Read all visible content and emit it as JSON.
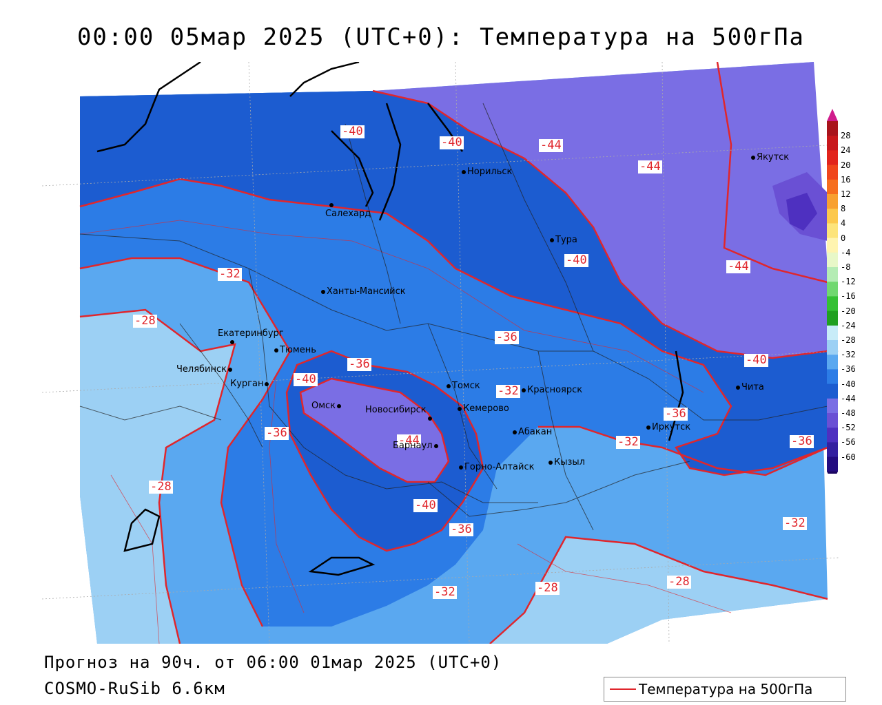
{
  "title": "00:00 05мар 2025 (UTC+0): Температура на 500гПа",
  "forecast_info": "Прогноз на 90ч. от 06:00 01мар 2025 (UTC+0)",
  "model_info": "COSMO-RuSib 6.6км",
  "legend": {
    "label": "Температура на 500гПа",
    "line_color": "#e0262c"
  },
  "scale": {
    "ticks": [
      "28",
      "24",
      "20",
      "16",
      "12",
      "8",
      "4",
      "0",
      "-4",
      "-8",
      "-12",
      "-16",
      "-20",
      "-24",
      "-28",
      "-32",
      "-36",
      "-40",
      "-44",
      "-48",
      "-52",
      "-56",
      "-60"
    ],
    "colors": [
      "#a8141c",
      "#c8181c",
      "#e2241c",
      "#f0461c",
      "#f66e1e",
      "#f8a030",
      "#fcc84c",
      "#fde47a",
      "#fff4b0",
      "#e8f8c8",
      "#b4ecb4",
      "#70d870",
      "#34c034",
      "#20a020",
      "#c8ecf8",
      "#9cd0f4",
      "#5aa8f0",
      "#2c7ce6",
      "#1c5cd0",
      "#7a6ee4",
      "#6a50d4",
      "#4e30c0",
      "#3420a0",
      "#240c80"
    ]
  },
  "contour_labels": [
    "-40",
    "-40",
    "-44",
    "-44",
    "-44",
    "-40",
    "-32",
    "-28",
    "-36",
    "-40",
    "-36",
    "-32",
    "-36",
    "-44",
    "-36",
    "-32",
    "-40",
    "-36",
    "-40",
    "-28",
    "-36",
    "-32",
    "-28",
    "-32",
    "-28"
  ],
  "cities": [
    {
      "name": "Норильск"
    },
    {
      "name": "Салехард"
    },
    {
      "name": "Тура"
    },
    {
      "name": "Якутск"
    },
    {
      "name": "Ханты-Мансийск"
    },
    {
      "name": "Екатеринбург"
    },
    {
      "name": "Тюмень"
    },
    {
      "name": "Челябинск"
    },
    {
      "name": "Курган"
    },
    {
      "name": "Томск"
    },
    {
      "name": "Красноярск"
    },
    {
      "name": "Омск"
    },
    {
      "name": "Новосибирск"
    },
    {
      "name": "Кемерово"
    },
    {
      "name": "Абакан"
    },
    {
      "name": "Иркутск"
    },
    {
      "name": "Чита"
    },
    {
      "name": "Барнаул"
    },
    {
      "name": "Горно-Алтайск"
    },
    {
      "name": "Кызыл"
    }
  ]
}
